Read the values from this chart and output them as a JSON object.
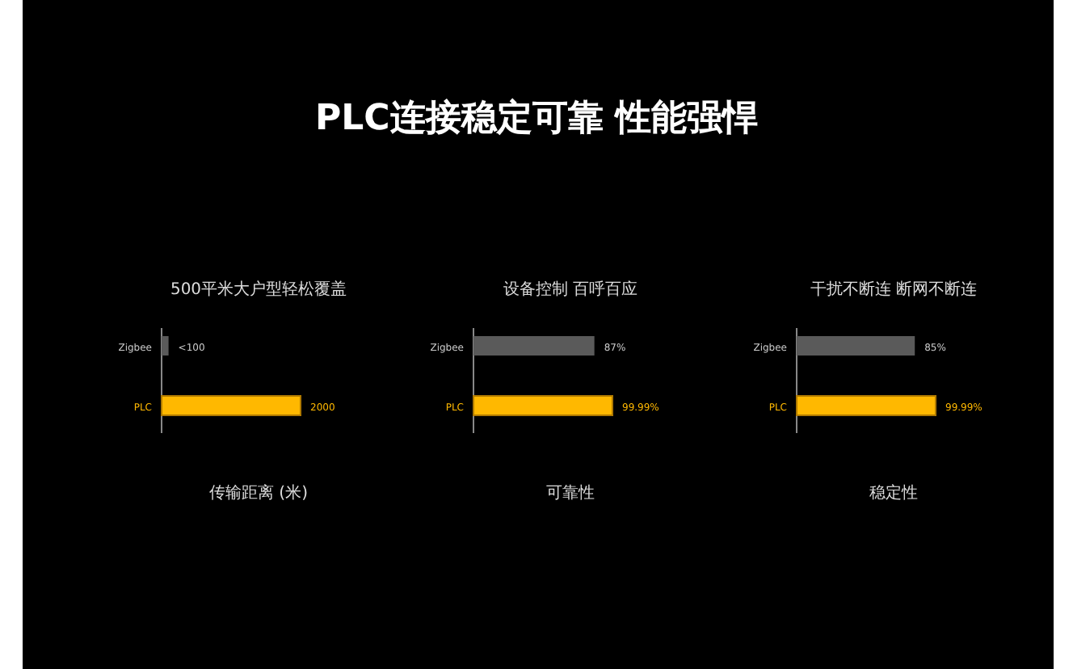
{
  "chart_data": [
    {
      "type": "bar",
      "orientation": "horizontal",
      "subtitle": "500平米大户型轻松覆盖",
      "xlabel": "传输距离 (米)",
      "categories": [
        "Zigbee",
        "PLC"
      ],
      "values": [
        100,
        2000
      ],
      "colors": [
        "#5a5a5a",
        "#ffb800"
      ],
      "value_labels": [
        "<100",
        "2000"
      ]
    },
    {
      "type": "bar",
      "orientation": "horizontal",
      "title": "PLC连接稳定可靠 性能强悍",
      "subtitle": "设备控制 百呼百应",
      "xlabel": "可靠性",
      "categories": [
        "Zigbee",
        "PLC"
      ],
      "values": [
        87,
        99.99
      ],
      "colors": [
        "#5a5a5a",
        "#ffb800"
      ],
      "value_labels": [
        "87%",
        "99.99%"
      ]
    },
    {
      "type": "bar",
      "orientation": "horizontal",
      "subtitle": "干扰不断连 断网不断连",
      "xlabel": "稳定性",
      "categories": [
        "Zigbee",
        "PLC"
      ],
      "values": [
        85,
        99.99
      ],
      "colors": [
        "#5a5a5a",
        "#ffb800"
      ],
      "value_labels": [
        "85%",
        "99.99%"
      ]
    }
  ]
}
